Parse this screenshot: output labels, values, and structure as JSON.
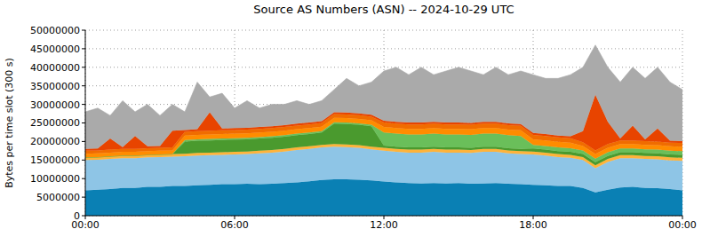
{
  "chart_data": {
    "type": "area",
    "title": "Source AS Numbers (ASN) -- 2024-10-29 UTC",
    "y_label": "Bytes per time slot (300 s)",
    "stacked": true,
    "grid": true,
    "x": [
      0,
      0.5,
      1,
      1.5,
      2,
      2.5,
      3,
      3.5,
      4,
      4.5,
      5,
      5.5,
      6,
      6.5,
      7,
      7.5,
      8,
      8.5,
      9,
      9.5,
      10,
      10.5,
      11,
      11.5,
      12,
      12.5,
      13,
      13.5,
      14,
      14.5,
      15,
      15.5,
      16,
      16.5,
      17,
      17.5,
      18,
      18.5,
      19,
      19.5,
      20,
      20.5,
      21,
      21.5,
      22,
      22.5,
      23,
      23.5,
      24
    ],
    "xlim": [
      0,
      24
    ],
    "xticks": [
      {
        "value": 0,
        "label": "00:00"
      },
      {
        "value": 6,
        "label": "06:00"
      },
      {
        "value": 12,
        "label": "12:00"
      },
      {
        "value": 18,
        "label": "18:00"
      },
      {
        "value": 24,
        "label": "00:00"
      }
    ],
    "ylim": [
      0,
      50000000
    ],
    "yticks": [
      0,
      5000000,
      10000000,
      15000000,
      20000000,
      25000000,
      30000000,
      35000000,
      40000000,
      45000000,
      50000000
    ],
    "series": [
      {
        "color": "#0a80b4",
        "values": [
          6800000,
          7000000,
          7200000,
          7500000,
          7500000,
          7800000,
          7800000,
          8000000,
          8000000,
          8200000,
          8300000,
          8500000,
          8500000,
          8600000,
          8500000,
          8600000,
          8800000,
          9000000,
          9300000,
          9600000,
          9800000,
          9800000,
          9700000,
          9500000,
          9200000,
          9000000,
          8800000,
          8700000,
          8800000,
          8700000,
          8800000,
          8600000,
          8700000,
          8800000,
          8600000,
          8500000,
          8300000,
          8200000,
          8000000,
          8000000,
          7500000,
          6300000,
          7000000,
          7600000,
          7800000,
          7500000,
          7400000,
          7200000,
          6800000
        ]
      },
      {
        "color": "#8ec5e6",
        "values": [
          8200000,
          8100000,
          8100000,
          8000000,
          8000000,
          7900000,
          8000000,
          7900000,
          8000000,
          8000000,
          8000000,
          7900000,
          8000000,
          8000000,
          8300000,
          8400000,
          8500000,
          8700000,
          8700000,
          8800000,
          8800000,
          8700000,
          8600000,
          8400000,
          8300000,
          8200000,
          8200000,
          8300000,
          8400000,
          8300000,
          8200000,
          8300000,
          8500000,
          8400000,
          8200000,
          8100000,
          8200000,
          8000000,
          7800000,
          7600000,
          7500000,
          6500000,
          7500000,
          7900000,
          7700000,
          7800000,
          7800000,
          7700000,
          8000000
        ]
      },
      {
        "color": "#ffb33a",
        "values": [
          700000,
          700000,
          700000,
          700000,
          700000,
          700000,
          700000,
          700000,
          700000,
          700000,
          700000,
          700000,
          700000,
          700000,
          700000,
          700000,
          700000,
          700000,
          700000,
          700000,
          700000,
          700000,
          700000,
          700000,
          800000,
          800000,
          800000,
          800000,
          800000,
          800000,
          800000,
          800000,
          800000,
          800000,
          800000,
          800000,
          800000,
          800000,
          800000,
          800000,
          800000,
          800000,
          800000,
          800000,
          800000,
          800000,
          800000,
          800000,
          800000
        ]
      },
      {
        "color": "#4a9a2e",
        "values": [
          0,
          0,
          0,
          0,
          0,
          0,
          0,
          0,
          3300000,
          3300000,
          3300000,
          3300000,
          3300000,
          3300000,
          3300000,
          3300000,
          3300000,
          3300000,
          3300000,
          3300000,
          5500000,
          5500000,
          5500000,
          5500000,
          600000,
          600000,
          600000,
          600000,
          600000,
          600000,
          600000,
          600000,
          600000,
          600000,
          600000,
          600000,
          800000,
          800000,
          800000,
          800000,
          800000,
          800000,
          800000,
          800000,
          800000,
          800000,
          800000,
          800000,
          800000
        ]
      },
      {
        "color": "#6abf5a",
        "values": [
          0,
          0,
          0,
          0,
          0,
          0,
          0,
          0,
          400000,
          400000,
          400000,
          400000,
          400000,
          400000,
          400000,
          400000,
          400000,
          400000,
          400000,
          400000,
          400000,
          400000,
          400000,
          400000,
          3500000,
          3500000,
          3500000,
          3500000,
          3500000,
          3500000,
          3500000,
          3500000,
          3500000,
          3500000,
          3500000,
          3500000,
          1000000,
          1000000,
          1000000,
          1000000,
          1000000,
          1000000,
          1000000,
          1000000,
          1000000,
          1000000,
          1000000,
          1000000,
          1000000
        ]
      },
      {
        "color": "#ff8c00",
        "values": [
          1000000,
          1000000,
          1000000,
          1000000,
          1000000,
          1000000,
          1000000,
          1000000,
          1200000,
          1200000,
          1200000,
          1200000,
          1200000,
          1200000,
          1200000,
          1200000,
          1200000,
          1200000,
          1200000,
          1200000,
          1200000,
          1200000,
          1200000,
          1200000,
          1500000,
          1500000,
          1500000,
          1500000,
          1500000,
          1500000,
          1500000,
          1500000,
          1500000,
          1500000,
          1500000,
          1500000,
          1500000,
          1500000,
          1500000,
          1500000,
          1200000,
          1200000,
          1200000,
          1200000,
          1200000,
          1200000,
          1200000,
          1200000,
          1200000
        ]
      },
      {
        "color": "#f06c00",
        "values": [
          800000,
          800000,
          800000,
          800000,
          800000,
          800000,
          800000,
          800000,
          1000000,
          1000000,
          1000000,
          1000000,
          1000000,
          1000000,
          1000000,
          1000000,
          1000000,
          1000000,
          1000000,
          1000000,
          1000000,
          1000000,
          1000000,
          1000000,
          1200000,
          1200000,
          1200000,
          1200000,
          1200000,
          1200000,
          1200000,
          1200000,
          1200000,
          1200000,
          1200000,
          1200000,
          1200000,
          1200000,
          1200000,
          1200000,
          1000000,
          1000000,
          1000000,
          1000000,
          1000000,
          1000000,
          1000000,
          1000000,
          1000000
        ]
      },
      {
        "color": "#e84400",
        "values": [
          500000,
          500000,
          3000000,
          500000,
          3500000,
          500000,
          500000,
          4500000,
          500000,
          500000,
          5000000,
          500000,
          500000,
          500000,
          500000,
          500000,
          500000,
          500000,
          500000,
          500000,
          500000,
          500000,
          500000,
          500000,
          500000,
          500000,
          500000,
          500000,
          500000,
          500000,
          500000,
          500000,
          500000,
          500000,
          500000,
          500000,
          500000,
          500000,
          500000,
          500000,
          3000000,
          15000000,
          6000000,
          500000,
          4000000,
          500000,
          3500000,
          500000,
          500000
        ]
      },
      {
        "color": "#aaaaaa",
        "values": [
          10000000,
          10900000,
          6200000,
          12500000,
          6500000,
          11300000,
          8200000,
          7100000,
          4900000,
          12700000,
          4100000,
          9500000,
          5400000,
          7300000,
          5100000,
          5900000,
          5600000,
          6200000,
          4900000,
          5500000,
          6100000,
          9200000,
          7400000,
          8800000,
          13400000,
          14700000,
          12900000,
          14900000,
          12700000,
          13900000,
          14900000,
          14000000,
          12700000,
          14700000,
          13100000,
          14300000,
          15700000,
          15000000,
          15400000,
          16600000,
          17200000,
          13400000,
          14700000,
          15200000,
          15700000,
          16400000,
          16500000,
          15800000,
          13900000
        ]
      }
    ]
  }
}
